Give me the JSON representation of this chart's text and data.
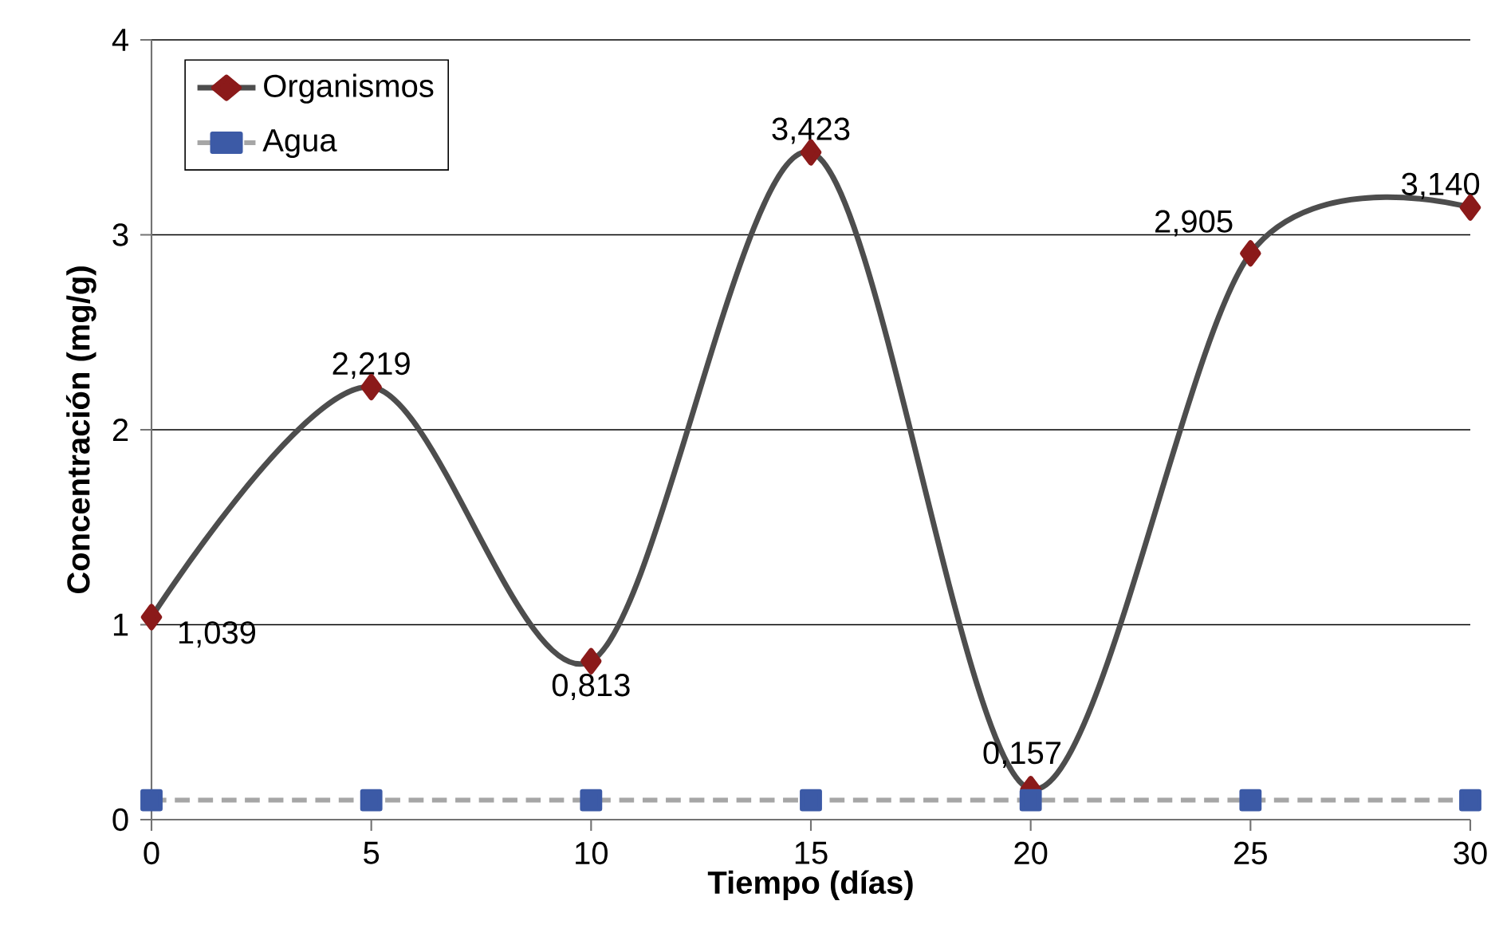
{
  "chart_data": {
    "type": "line",
    "xlabel": "Tiempo (días)",
    "ylabel": "Concentración  (mg/g)",
    "x": [
      0,
      5,
      10,
      15,
      20,
      25,
      30
    ],
    "series": [
      {
        "name": "Organismos",
        "color": "#4d4d4d",
        "marker": "diamond",
        "line_style": "solid",
        "values": [
          1.039,
          2.219,
          0.813,
          3.423,
          0.157,
          2.905,
          3.14
        ],
        "value_labels": [
          "1,039",
          "2,219",
          "0,813",
          "3,423",
          "0,157",
          "2,905",
          "3,140"
        ]
      },
      {
        "name": "Agua",
        "color": "#a6a6a6",
        "marker": "square",
        "line_style": "dashed",
        "values": [
          0.1,
          0.1,
          0.1,
          0.1,
          0.1,
          0.1,
          0.1
        ]
      }
    ],
    "xlim": [
      0,
      30
    ],
    "xticks": [
      0,
      5,
      10,
      15,
      20,
      25,
      30
    ],
    "ylim": [
      0,
      4
    ],
    "yticks": [
      0,
      1,
      2,
      3,
      4
    ],
    "grid": "y",
    "legend": "top left"
  }
}
